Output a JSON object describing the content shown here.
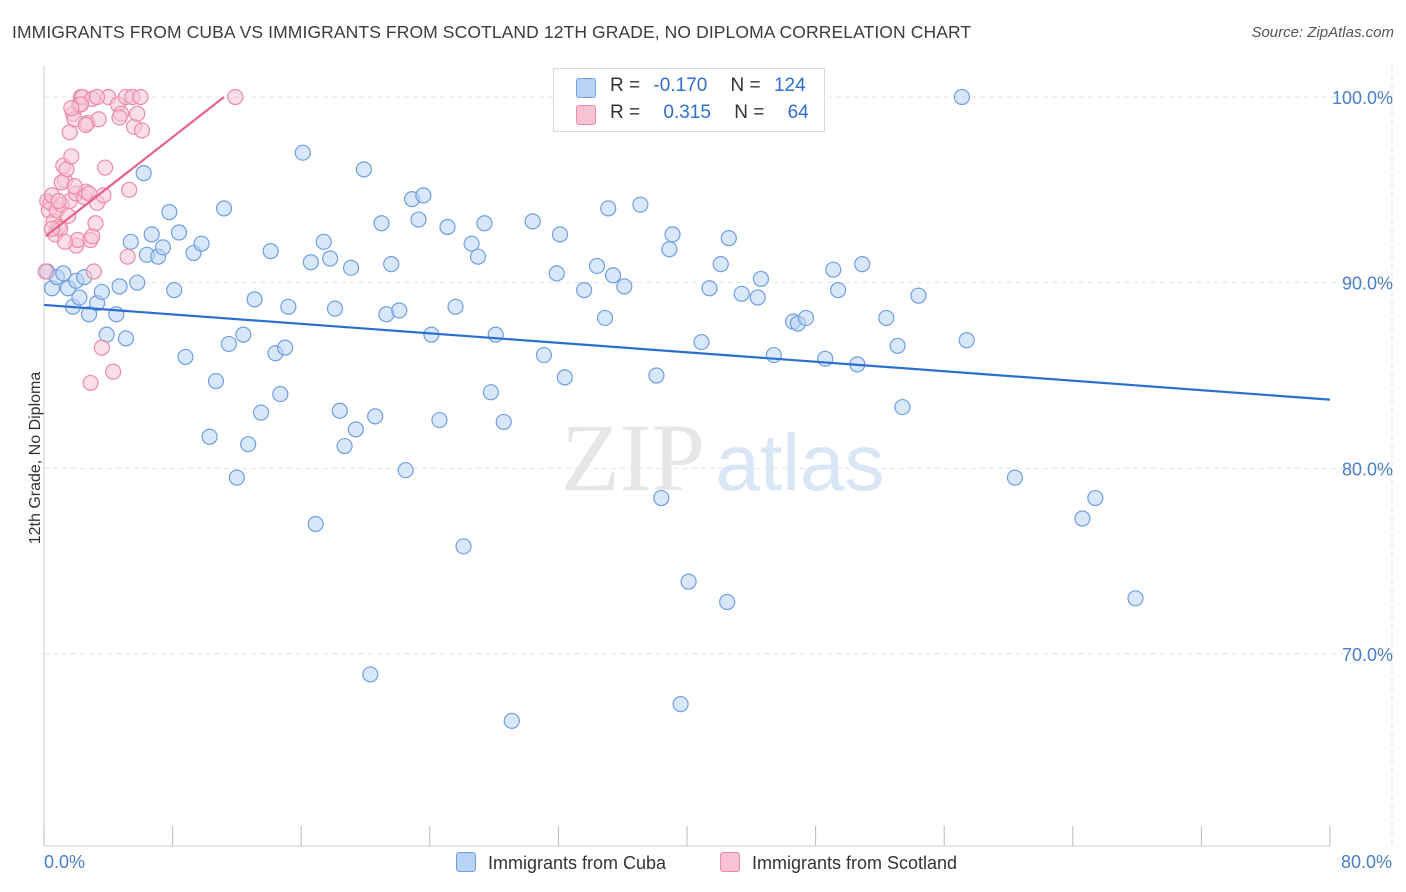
{
  "title": "IMMIGRANTS FROM CUBA VS IMMIGRANTS FROM SCOTLAND 12TH GRADE, NO DIPLOMA CORRELATION CHART",
  "source": "Source: ZipAtlas.com",
  "watermark": {
    "zip": "ZIP",
    "atlas": "atlas"
  },
  "legend": {
    "rows": [
      {
        "r_label": "R =",
        "r_value": "-0.170",
        "n_label": "N =",
        "n_value": "124"
      },
      {
        "r_label": "R =",
        "r_value": "0.315",
        "n_label": "N =",
        "n_value": "64"
      }
    ]
  },
  "bottom_legend": {
    "cuba": "Immigrants from Cuba",
    "scotland": "Immigrants from Scotland"
  },
  "colors": {
    "cuba_fill": "#b9d3f5",
    "cuba_stroke": "#6f9fe0",
    "cuba_line": "#2a6fcf",
    "scot_fill": "#f8c4d4",
    "scot_stroke": "#ec8aa8",
    "scot_line": "#e8608c",
    "grid": "#e3e3e3",
    "tick_label": "#4a7fc8"
  },
  "chart_data": {
    "type": "scatter",
    "title": "IMMIGRANTS FROM CUBA VS IMMIGRANTS FROM SCOTLAND 12TH GRADE, NO DIPLOMA CORRELATION CHART",
    "xlabel": "",
    "ylabel": "12th Grade, No Diploma",
    "xlim": [
      0,
      80
    ],
    "ylim": [
      60,
      101.5
    ],
    "x_tick_labels": [
      "0.0%",
      "80.0%"
    ],
    "y_ticks": [
      70,
      80,
      90,
      100
    ],
    "y_tick_labels": [
      "70.0%",
      "80.0%",
      "90.0%",
      "100.0%"
    ],
    "grid": true,
    "legend_position": "top-center",
    "series": [
      {
        "name": "Immigrants from Cuba",
        "R": -0.17,
        "N": 124,
        "trend": {
          "x": [
            0,
            80
          ],
          "y": [
            88.8,
            83.7
          ]
        },
        "points": [
          [
            0.2,
            90.6
          ],
          [
            0.5,
            89.7
          ],
          [
            0.8,
            90.3
          ],
          [
            1.2,
            90.5
          ],
          [
            1.5,
            89.7
          ],
          [
            1.8,
            88.7
          ],
          [
            2,
            90.1
          ],
          [
            2.2,
            89.2
          ],
          [
            2.5,
            90.3
          ],
          [
            2.8,
            88.3
          ],
          [
            3.3,
            88.9
          ],
          [
            3.6,
            89.5
          ],
          [
            3.9,
            87.2
          ],
          [
            4.5,
            88.3
          ],
          [
            4.7,
            89.8
          ],
          [
            5.1,
            87
          ],
          [
            5.4,
            92.2
          ],
          [
            5.8,
            90
          ],
          [
            6.2,
            95.9
          ],
          [
            6.4,
            91.5
          ],
          [
            6.7,
            92.6
          ],
          [
            7.1,
            91.4
          ],
          [
            7.4,
            91.9
          ],
          [
            7.8,
            93.8
          ],
          [
            8.1,
            89.6
          ],
          [
            8.4,
            92.7
          ],
          [
            8.8,
            86
          ],
          [
            9.3,
            91.6
          ],
          [
            9.8,
            92.1
          ],
          [
            10.3,
            81.7
          ],
          [
            10.7,
            84.7
          ],
          [
            11.2,
            94
          ],
          [
            11.5,
            86.7
          ],
          [
            12,
            79.5
          ],
          [
            12.4,
            87.2
          ],
          [
            12.7,
            81.3
          ],
          [
            13.1,
            89.1
          ],
          [
            13.5,
            83
          ],
          [
            14.1,
            91.7
          ],
          [
            14.4,
            86.2
          ],
          [
            14.7,
            84
          ],
          [
            15,
            86.5
          ],
          [
            15.2,
            88.7
          ],
          [
            16.1,
            97
          ],
          [
            16.6,
            91.1
          ],
          [
            16.9,
            77
          ],
          [
            17.4,
            92.2
          ],
          [
            17.8,
            91.3
          ],
          [
            18.1,
            88.6
          ],
          [
            18.4,
            83.1
          ],
          [
            18.7,
            81.2
          ],
          [
            19.1,
            90.8
          ],
          [
            19.4,
            82.1
          ],
          [
            19.9,
            96.1
          ],
          [
            20.3,
            68.9
          ],
          [
            20.6,
            82.8
          ],
          [
            21,
            93.2
          ],
          [
            21.3,
            88.3
          ],
          [
            21.6,
            91
          ],
          [
            22.1,
            88.5
          ],
          [
            22.5,
            79.9
          ],
          [
            22.9,
            94.5
          ],
          [
            23.3,
            93.4
          ],
          [
            23.6,
            94.7
          ],
          [
            24.1,
            87.2
          ],
          [
            24.6,
            82.6
          ],
          [
            25.1,
            93.0
          ],
          [
            25.6,
            88.7
          ],
          [
            26.1,
            75.8
          ],
          [
            26.6,
            92.1
          ],
          [
            27,
            91.4
          ],
          [
            27.4,
            93.2
          ],
          [
            27.8,
            84.1
          ],
          [
            28.1,
            87.2
          ],
          [
            28.6,
            82.5
          ],
          [
            29.1,
            66.4
          ],
          [
            30.4,
            93.3
          ],
          [
            31.1,
            86.1
          ],
          [
            31.9,
            90.5
          ],
          [
            32.1,
            92.6
          ],
          [
            32.4,
            84.9
          ],
          [
            33.6,
            89.6
          ],
          [
            34.4,
            90.9
          ],
          [
            34.9,
            88.1
          ],
          [
            35.1,
            94
          ],
          [
            35.4,
            90.4
          ],
          [
            36.1,
            89.8
          ],
          [
            37.1,
            94.2
          ],
          [
            38.1,
            85.0
          ],
          [
            38.4,
            78.4
          ],
          [
            38.9,
            91.8
          ],
          [
            39.1,
            92.6
          ],
          [
            39.6,
            67.3
          ],
          [
            40.1,
            73.9
          ],
          [
            40.9,
            86.8
          ],
          [
            41.4,
            89.7
          ],
          [
            42.1,
            91.0
          ],
          [
            42.5,
            72.8
          ],
          [
            42.6,
            92.4
          ],
          [
            43.4,
            89.4
          ],
          [
            44.4,
            89.2
          ],
          [
            44.6,
            90.2
          ],
          [
            45.4,
            86.1
          ],
          [
            46.6,
            87.9
          ],
          [
            46.9,
            87.8
          ],
          [
            47.4,
            88.1
          ],
          [
            48.6,
            85.9
          ],
          [
            49.1,
            90.7
          ],
          [
            49.4,
            89.6
          ],
          [
            50.6,
            85.6
          ],
          [
            50.9,
            91
          ],
          [
            52.4,
            88.1
          ],
          [
            53.1,
            86.6
          ],
          [
            53.4,
            83.3
          ],
          [
            54.4,
            89.3
          ],
          [
            57.1,
            100
          ],
          [
            57.4,
            86.9
          ],
          [
            60.4,
            79.5
          ],
          [
            64.6,
            77.3
          ],
          [
            65.4,
            78.4
          ],
          [
            67.9,
            73
          ]
        ]
      },
      {
        "name": "Immigrants from Scotland",
        "R": 0.315,
        "N": 64,
        "trend": {
          "x": [
            0.1,
            11.2
          ],
          "y": [
            92.5,
            100
          ]
        },
        "points": [
          [
            0.1,
            90.6
          ],
          [
            0.2,
            94.4
          ],
          [
            0.3,
            93.9
          ],
          [
            0.4,
            94.3
          ],
          [
            0.5,
            94.7
          ],
          [
            0.6,
            93.3
          ],
          [
            0.7,
            92.6
          ],
          [
            0.8,
            93.9
          ],
          [
            0.9,
            93
          ],
          [
            1,
            92.9
          ],
          [
            1.1,
            94.2
          ],
          [
            1.2,
            96.3
          ],
          [
            1.3,
            95.5
          ],
          [
            1.4,
            96.1
          ],
          [
            1.5,
            93.6
          ],
          [
            1.6,
            94.4
          ],
          [
            1.6,
            98.1
          ],
          [
            1.7,
            96.8
          ],
          [
            1.8,
            99.1
          ],
          [
            1.9,
            98.8
          ],
          [
            2,
            94.8
          ],
          [
            2,
            92.0
          ],
          [
            2.1,
            92.3
          ],
          [
            2.2,
            99.6
          ],
          [
            2.3,
            100
          ],
          [
            2.4,
            100
          ],
          [
            2.5,
            94.6
          ],
          [
            2.6,
            94.9
          ],
          [
            2.7,
            98.6
          ],
          [
            2.8,
            94.8
          ],
          [
            2.9,
            92.3
          ],
          [
            3,
            99.9
          ],
          [
            3,
            92.5
          ],
          [
            2.9,
            84.6
          ],
          [
            3.3,
            94.3
          ],
          [
            3.1,
            90.6
          ],
          [
            3.4,
            98.8
          ],
          [
            3.6,
            86.5
          ],
          [
            3.7,
            94.7
          ],
          [
            3.8,
            96.2
          ],
          [
            4,
            100
          ],
          [
            4.3,
            85.2
          ],
          [
            4.6,
            99.6
          ],
          [
            4.8,
            99.1
          ],
          [
            5.1,
            100
          ],
          [
            5.2,
            91.4
          ],
          [
            5.3,
            95
          ],
          [
            5.5,
            100
          ],
          [
            5.6,
            98.4
          ],
          [
            5.8,
            99.1
          ],
          [
            6,
            100
          ],
          [
            6.1,
            98.2
          ],
          [
            11.9,
            100
          ],
          [
            1.3,
            92.2
          ],
          [
            1.1,
            95.4
          ],
          [
            0.9,
            94.4
          ],
          [
            2.3,
            99.6
          ],
          [
            3.2,
            93.2
          ],
          [
            1.9,
            95.2
          ],
          [
            0.5,
            92.9
          ],
          [
            2.6,
            98.5
          ],
          [
            1.7,
            99.4
          ],
          [
            4.7,
            98.9
          ],
          [
            3.3,
            100
          ]
        ]
      }
    ]
  }
}
